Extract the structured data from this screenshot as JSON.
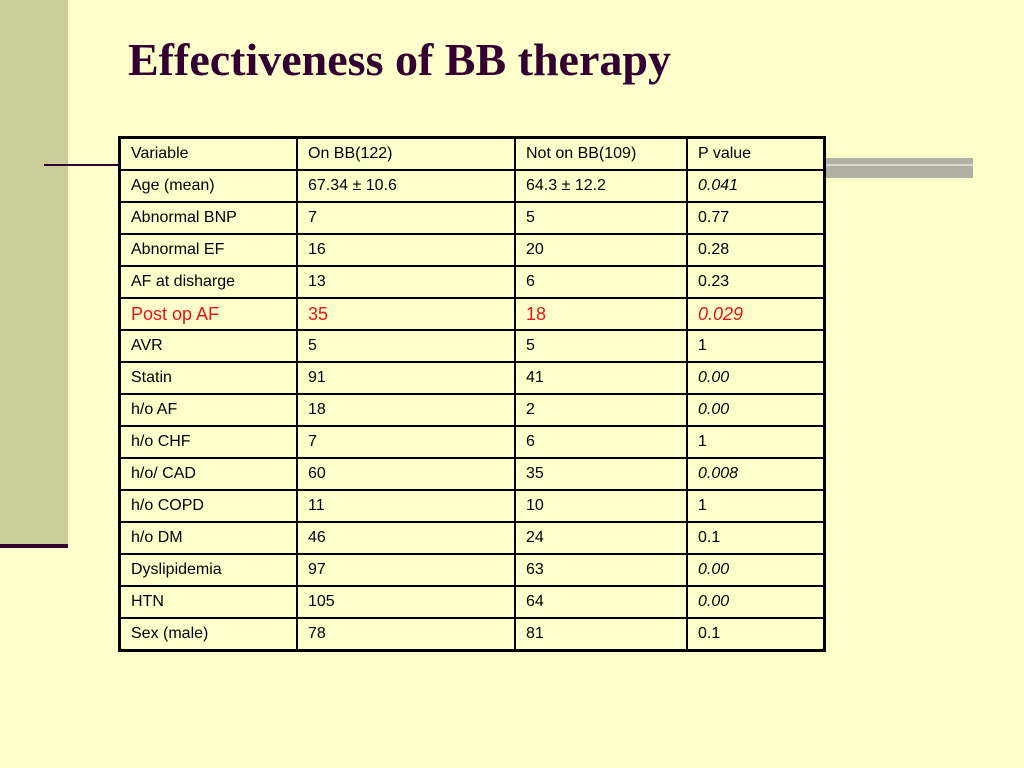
{
  "slide": {
    "title": "Effectiveness of BB therapy",
    "accent_color": "#330033",
    "background_color": "#ffffcc",
    "band_color": "#cccc99",
    "highlight_color": "#e8141c"
  },
  "table": {
    "headers": [
      "Variable",
      "On BB(122)",
      "Not on BB(109)",
      "P value"
    ],
    "rows": [
      {
        "cells": [
          "Age (mean)",
          "67.34 ± 10.6",
          "64.3 ± 12.2",
          "0.041"
        ],
        "p_italic": true,
        "highlight": false
      },
      {
        "cells": [
          "Abnormal BNP",
          "7",
          "5",
          "0.77"
        ],
        "p_italic": false,
        "highlight": false
      },
      {
        "cells": [
          "Abnormal EF",
          "16",
          "20",
          "0.28"
        ],
        "p_italic": false,
        "highlight": false
      },
      {
        "cells": [
          "AF at disharge",
          "13",
          "6",
          "0.23"
        ],
        "p_italic": false,
        "highlight": false
      },
      {
        "cells": [
          "Post op AF",
          "35",
          "18",
          "0.029"
        ],
        "p_italic": true,
        "highlight": true
      },
      {
        "cells": [
          "AVR",
          "5",
          "5",
          "1"
        ],
        "p_italic": false,
        "highlight": false
      },
      {
        "cells": [
          "Statin",
          "91",
          "41",
          "0.00"
        ],
        "p_italic": true,
        "highlight": false
      },
      {
        "cells": [
          "h/o AF",
          "18",
          "2",
          "0.00"
        ],
        "p_italic": true,
        "highlight": false
      },
      {
        "cells": [
          "h/o CHF",
          "7",
          "6",
          "1"
        ],
        "p_italic": false,
        "highlight": false
      },
      {
        "cells": [
          "h/o/ CAD",
          "60",
          "35",
          "0.008"
        ],
        "p_italic": true,
        "highlight": false
      },
      {
        "cells": [
          "h/o COPD",
          "11",
          "10",
          "1"
        ],
        "p_italic": false,
        "highlight": false
      },
      {
        "cells": [
          "h/o DM",
          "46",
          "24",
          "0.1"
        ],
        "p_italic": false,
        "highlight": false
      },
      {
        "cells": [
          "Dyslipidemia",
          "97",
          "63",
          "0.00"
        ],
        "p_italic": true,
        "highlight": false
      },
      {
        "cells": [
          "HTN",
          "105",
          "64",
          "0.00"
        ],
        "p_italic": true,
        "highlight": false
      },
      {
        "cells": [
          "Sex (male)",
          "78",
          "81",
          "0.1"
        ],
        "p_italic": false,
        "highlight": false
      }
    ]
  }
}
